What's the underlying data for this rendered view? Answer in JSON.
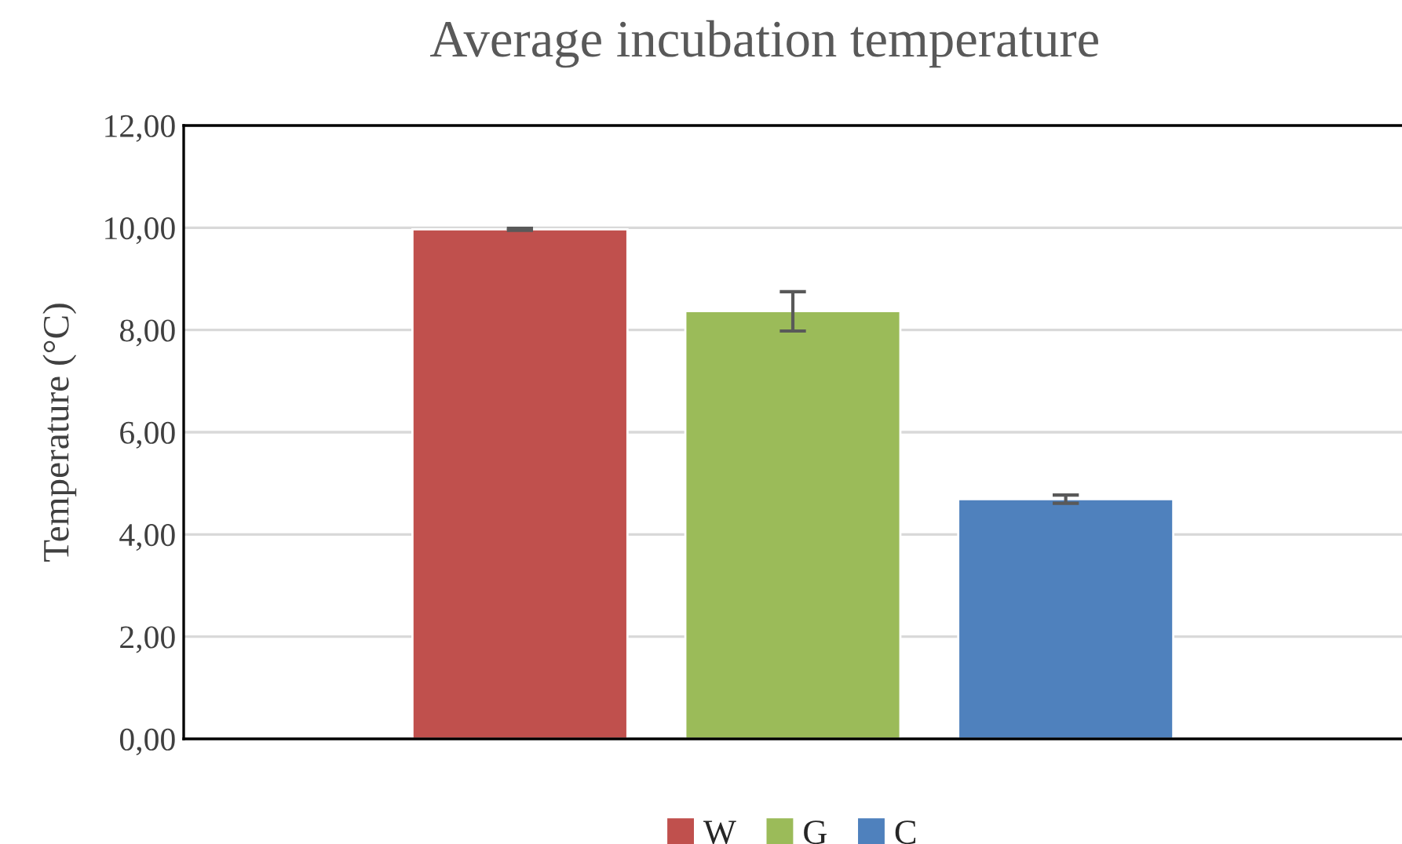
{
  "chart_data": {
    "type": "bar",
    "title": "Average incubation temperature",
    "ylabel": "Temperature (°C)",
    "categories": [
      null
    ],
    "series": [
      {
        "name": "W",
        "color": "#c0504d",
        "values": [
          9.97
        ],
        "errors": [
          0.02
        ]
      },
      {
        "name": "G",
        "color": "#9bbb59",
        "values": [
          8.37
        ],
        "errors": [
          [
            7.98,
            8.75
          ]
        ]
      },
      {
        "name": "C",
        "color": "#4f81bd",
        "values": [
          4.69
        ],
        "errors": [
          0.08
        ]
      }
    ],
    "ylim": [
      0,
      12
    ],
    "yticks": [
      {
        "value": 0,
        "label": "0,00"
      },
      {
        "value": 2,
        "label": "2,00"
      },
      {
        "value": 4,
        "label": "4,00"
      },
      {
        "value": 6,
        "label": "6,00"
      },
      {
        "value": 8,
        "label": "8,00"
      },
      {
        "value": 10,
        "label": "10,00"
      },
      {
        "value": 12,
        "label": "12,00"
      }
    ],
    "grid": "y",
    "legend": "bottom"
  }
}
